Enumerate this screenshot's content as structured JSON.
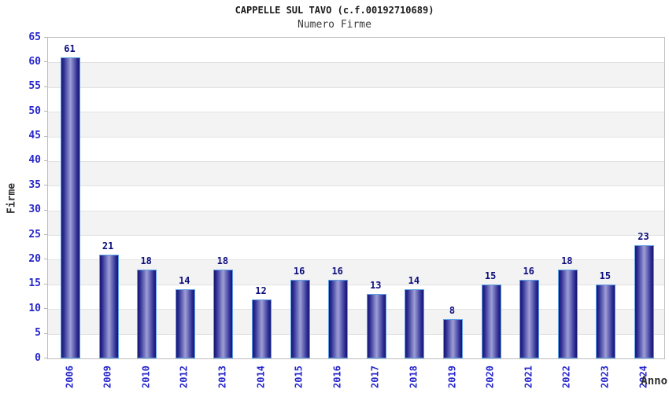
{
  "header": {
    "title": "CAPPELLE SUL TAVO (c.f.00192710689)",
    "subtitle": "Numero Firme"
  },
  "chart_data": {
    "type": "bar",
    "title": "CAPPELLE SUL TAVO (c.f.00192710689)",
    "subtitle": "Numero Firme",
    "xlabel": "Anno",
    "ylabel": "Firme",
    "categories": [
      "2006",
      "2009",
      "2010",
      "2012",
      "2013",
      "2014",
      "2015",
      "2016",
      "2017",
      "2018",
      "2019",
      "2020",
      "2021",
      "2022",
      "2023",
      "2024"
    ],
    "values": [
      61,
      21,
      18,
      14,
      18,
      12,
      16,
      16,
      13,
      14,
      8,
      15,
      16,
      18,
      15,
      23
    ],
    "ylim": [
      0,
      65
    ],
    "ytick_step": 5,
    "grid": "horizontal-bands-alternating",
    "legend": "none",
    "bar_labels": true,
    "colors": {
      "bar_edge_dark": "#17176e",
      "bar_mid": "#2b2b94",
      "bar_center_light": "#9e9ed6",
      "bar_border": "#5da0e4",
      "tick_label_blue": "#2626cc",
      "value_label_navy": "#0d0d7d",
      "band_gray": "#f3f3f3",
      "band_white": "#ffffff",
      "gridline": "#e2e2e2",
      "plot_border": "#bdbdbd",
      "tick_mark": "#b5b5b5",
      "title_color": "#1a1a1a",
      "subtitle_color": "#3c3c3c",
      "axis_title_color": "#303030"
    }
  }
}
